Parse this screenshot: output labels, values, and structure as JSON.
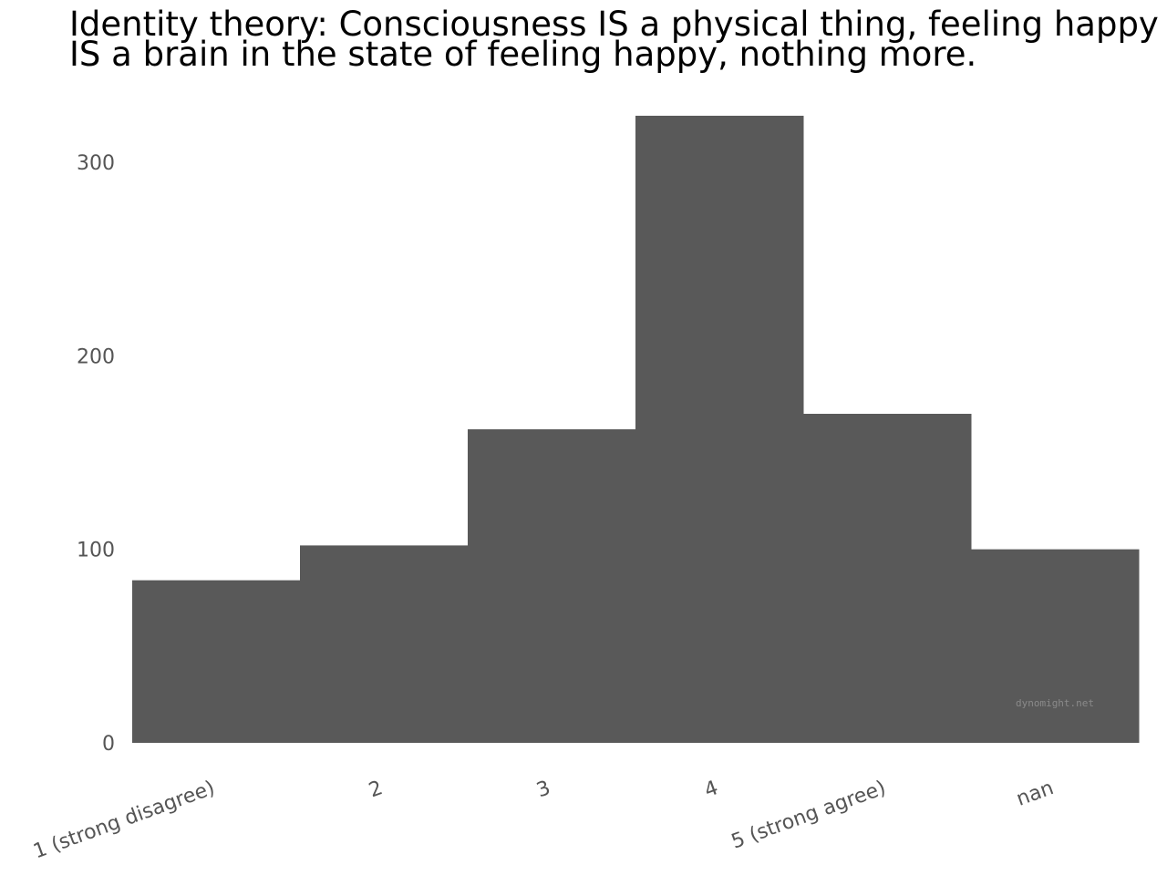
{
  "chart_data": {
    "type": "bar",
    "title": "Identity theory: Consciousness IS a physical thing, feeling happy\nIS a brain in the state of feeling happy, nothing more.",
    "categories": [
      "1 (strong disagree)",
      "2",
      "3",
      "4",
      "5 (strong agree)",
      "nan"
    ],
    "values": [
      84,
      102,
      162,
      324,
      170,
      100
    ],
    "ylim": [
      0,
      324
    ],
    "yticks": [
      0,
      100,
      200,
      300
    ],
    "xlabel": "",
    "ylabel": "",
    "grid": false,
    "bar_color": "#595959",
    "watermark": "dynomight.net"
  }
}
